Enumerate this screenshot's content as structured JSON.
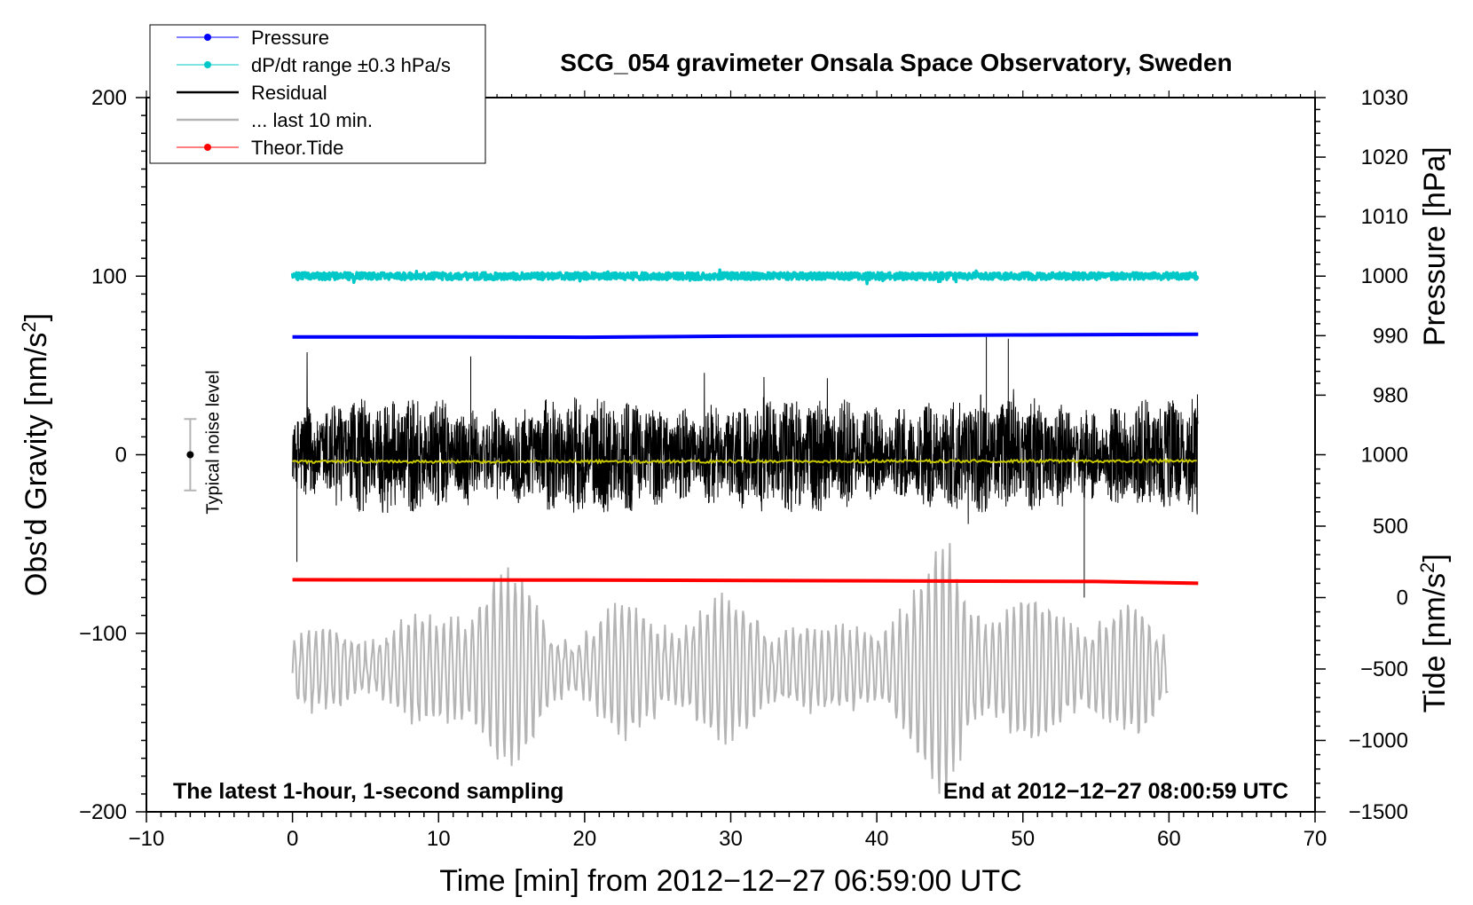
{
  "chart_data": {
    "type": "line",
    "title": "SCG_054 gravimeter Onsala Space Observatory, Sweden",
    "xlabel": "Time [min] from 2012−12−27 06:59:00 UTC",
    "ylabel_left": "Obs'd Gravity [nm/s²]",
    "ylabel_right_pressure": "Pressure [hPa]",
    "ylabel_right_tide": "Tide [nm/s²]",
    "xlim": [
      -10,
      70
    ],
    "ylim": [
      -200,
      200
    ],
    "x_ticks": [
      "−10",
      "0",
      "10",
      "20",
      "30",
      "40",
      "50",
      "60",
      "70"
    ],
    "y_ticks_left": [
      "200",
      "100",
      "0",
      "−100",
      "−200"
    ],
    "pressure_ticks": [
      "1030",
      "1020",
      "1010",
      "1000",
      "990",
      "980"
    ],
    "pressure_range": [
      980,
      1030
    ],
    "tide_ticks": [
      "1000",
      "500",
      "0",
      "−500",
      "−1000",
      "−1500"
    ],
    "tide_range": [
      -1500,
      1000
    ],
    "footnote_left": "The latest 1-hour, 1-second sampling",
    "footnote_right": "End at 2012−12−27 08:00:59 UTC",
    "noise_label": "Typical noise level",
    "noise_level": {
      "x": -7,
      "center": 0,
      "range": [
        -20,
        20
      ]
    },
    "legend": [
      {
        "label": "Pressure",
        "color": "#0000ff",
        "style": "dot-line"
      },
      {
        "label": "dP/dt range ±0.3 hPa/s",
        "color": "#00c8c8",
        "style": "dot-line"
      },
      {
        "label": "Residual",
        "color": "#000000",
        "style": "line"
      },
      {
        "label": "... last 10 min.",
        "color": "#b4b4b4",
        "style": "line"
      },
      {
        "label": "Theor.Tide",
        "color": "#ff0000",
        "style": "dot-line"
      }
    ],
    "series": [
      {
        "name": "Pressure",
        "color": "#0000ff",
        "axis": "gravity",
        "x": [
          0,
          10,
          20,
          30,
          40,
          50,
          62
        ],
        "y": [
          66,
          66,
          65.8,
          66.4,
          66.7,
          67.1,
          67.5
        ]
      },
      {
        "name": "dP/dt range ±0.3 hPa/s",
        "color": "#00c8c8",
        "axis": "gravity",
        "x": [
          0,
          62
        ],
        "y": [
          100,
          100
        ],
        "scatter": 2
      },
      {
        "name": "Residual",
        "color": "#000000",
        "axis": "gravity",
        "x_range": [
          0,
          62
        ],
        "typical_amplitude": 25,
        "extremes": [
          55,
          65,
          66,
          -60,
          -80
        ]
      },
      {
        "name": "Residual mean",
        "color": "#c8c800",
        "axis": "gravity",
        "x": [
          0,
          62
        ],
        "y": [
          -4,
          -3.5
        ]
      },
      {
        "name": "Theor.Tide",
        "color": "#ff0000",
        "axis": "gravity",
        "x": [
          0,
          20,
          40,
          55,
          62
        ],
        "y": [
          -70,
          -70.2,
          -70.6,
          -71,
          -72
        ]
      },
      {
        "name": "... last 10 min.",
        "color": "#b4b4b4",
        "axis": "gravity",
        "x_range": [
          0,
          60
        ],
        "center": -120,
        "amplitude_envelope": {
          "x": [
            0,
            5,
            10,
            13.5,
            18,
            22,
            28,
            33,
            37,
            43,
            45,
            48,
            53,
            58,
            60
          ],
          "a": [
            20,
            25,
            30,
            70,
            25,
            35,
            40,
            35,
            20,
            50,
            80,
            40,
            40,
            35,
            20
          ]
        }
      }
    ]
  }
}
